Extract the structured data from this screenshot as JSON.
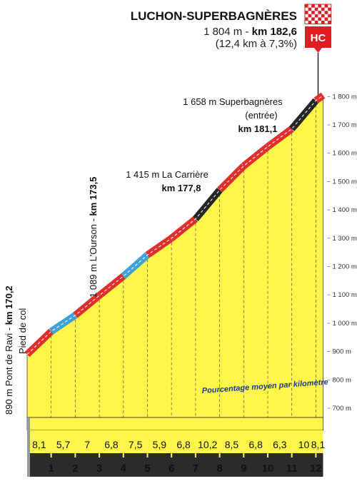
{
  "finish": {
    "name": "LUCHON-SUPERBAGNÈRES",
    "alt_label": "1 804 m - ",
    "km_label": "km 182,6",
    "climb_info": "(12,4 km à 7,3%)",
    "category": "HC"
  },
  "annotations": {
    "start": {
      "line1": "890 m Pont de Ravi - ",
      "km": "km 170,2",
      "line2": "Pied de col"
    },
    "ourson": {
      "line1": "1 089 m L'Ourson - ",
      "km": "km 173,5"
    },
    "carriere": {
      "line1": "1 415 m La Carrière",
      "km": "km 177,8"
    },
    "entree": {
      "line1": "1 658 m Superbagnères",
      "line2": "(entrée)",
      "km": "km 181,1"
    }
  },
  "note": "Pourcentage moyen par kilomètre",
  "colors": {
    "profile_fill": "#fff64a",
    "base_dark": "#2b2b2b",
    "base_light": "#cfcfcf",
    "gradient_red": "#e0302e",
    "gradient_blue": "#41a2d8",
    "gradient_black": "#262626",
    "category_red": "#e01e22"
  },
  "chart_data": {
    "type": "area",
    "title": "",
    "x_unit": "km",
    "y_unit": "m",
    "y_ticks": [
      "700 m",
      "800 m",
      "900 m",
      "1 000 m",
      "1 100 m",
      "1 200 m",
      "1 300 m",
      "1 400 m",
      "1 500 m",
      "1 600 m",
      "1 700 m",
      "1 800 m"
    ],
    "y_range": [
      700,
      1800
    ],
    "km_markers": [
      "1",
      "2",
      "3",
      "4",
      "5",
      "6",
      "7",
      "8",
      "9",
      "10",
      "11",
      "12"
    ],
    "segment_percent_labels": [
      "8,1",
      "5,7",
      "7",
      "6,8",
      "7,5",
      "5,9",
      "6,8",
      "10,2",
      "8,5",
      "6,8",
      "6,3",
      "10",
      "8,1"
    ],
    "profile": [
      {
        "x": 0,
        "y": 890,
        "pct": 8.1,
        "color": "red"
      },
      {
        "x": 1,
        "y": 971,
        "pct": 5.7,
        "color": "blue"
      },
      {
        "x": 2,
        "y": 1028,
        "pct": 7,
        "color": "red"
      },
      {
        "x": 3,
        "y": 1098,
        "pct": 6.8,
        "color": "red"
      },
      {
        "x": 4,
        "y": 1166,
        "pct": 7.5,
        "color": "blue"
      },
      {
        "x": 5,
        "y": 1241,
        "pct": 5.9,
        "color": "red"
      },
      {
        "x": 6,
        "y": 1300,
        "pct": 6.8,
        "color": "red"
      },
      {
        "x": 7,
        "y": 1368,
        "pct": 10.2,
        "color": "black"
      },
      {
        "x": 8,
        "y": 1470,
        "pct": 8.5,
        "color": "red"
      },
      {
        "x": 9,
        "y": 1555,
        "pct": 6.8,
        "color": "red"
      },
      {
        "x": 10,
        "y": 1623,
        "pct": 6.3,
        "color": "red"
      },
      {
        "x": 11,
        "y": 1686,
        "pct": 10,
        "color": "black"
      },
      {
        "x": 12,
        "y": 1786,
        "pct": 8.1,
        "color": "red"
      },
      {
        "x": 12.3,
        "y": 1804
      }
    ]
  }
}
